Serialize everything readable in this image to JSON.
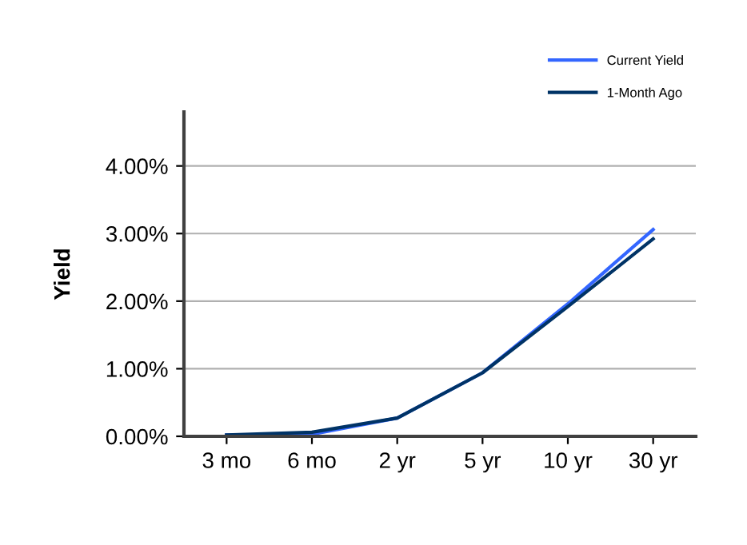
{
  "chart_data": {
    "type": "line",
    "ylabel": "Yield",
    "categories": [
      "3 mo",
      "6 mo",
      "2 yr",
      "5 yr",
      "10 yr",
      "30 yr"
    ],
    "series": [
      {
        "name": "Current Yield",
        "color": "#3366ff",
        "values": [
          0.02,
          0.03,
          0.27,
          0.94,
          1.96,
          3.06
        ]
      },
      {
        "name": "1-Month Ago",
        "color": "#003366",
        "values": [
          0.02,
          0.06,
          0.27,
          0.94,
          1.92,
          2.92
        ]
      }
    ],
    "ylim": [
      0,
      4.8
    ],
    "yticks": [
      {
        "value": 0,
        "label": "0.00%"
      },
      {
        "value": 1,
        "label": "1.00%"
      },
      {
        "value": 2,
        "label": "2.00%"
      },
      {
        "value": 3,
        "label": "3.00%"
      },
      {
        "value": 4,
        "label": "4.00%"
      }
    ],
    "grid": "y",
    "legend": "top right",
    "marker": "none",
    "line_style": "solid"
  }
}
